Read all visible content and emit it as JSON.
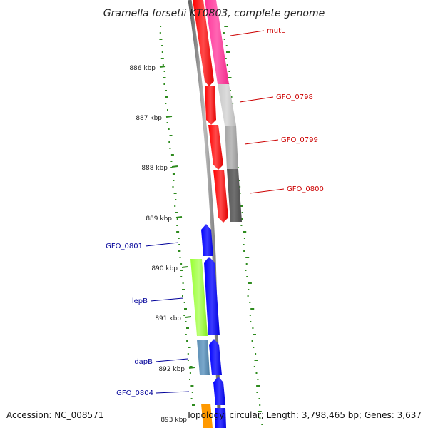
{
  "title": "Gramella forsetii KT0803, complete genome",
  "accession": "Accession: NC_008571",
  "topology": "Topology: circular; Length: 3,798,465 bp; Genes: 3,637",
  "kbp_ticks": [
    "886 kbp",
    "887 kbp",
    "888 kbp",
    "889 kbp",
    "890 kbp",
    "891 kbp",
    "892 kbp",
    "893 kbp"
  ],
  "genes_forward": [
    {
      "name": "mutL",
      "color": "#ff3399"
    },
    {
      "name": "GFO_0798",
      "color": "#c0c0c0"
    },
    {
      "name": "GFO_0799",
      "color": "#a9a9a9"
    },
    {
      "name": "GFO_0800",
      "color": "#5a5a5a"
    }
  ],
  "genes_reverse": [
    {
      "name": "GFO_0801",
      "color": "#0000ff"
    },
    {
      "name": "lepB",
      "color": "#99ff33"
    },
    {
      "name": "dapB",
      "color": "#5b8db3"
    },
    {
      "name": "GFO_0804",
      "color": "#0000ff"
    }
  ],
  "colors": {
    "forward_label": "#cc0000",
    "reverse_label": "#000099",
    "backbone": "#888888",
    "red_track": "#ff0000",
    "blue_track": "#0000ff",
    "gc_skew": "#2e8b1e",
    "orange": "#ff9900"
  }
}
